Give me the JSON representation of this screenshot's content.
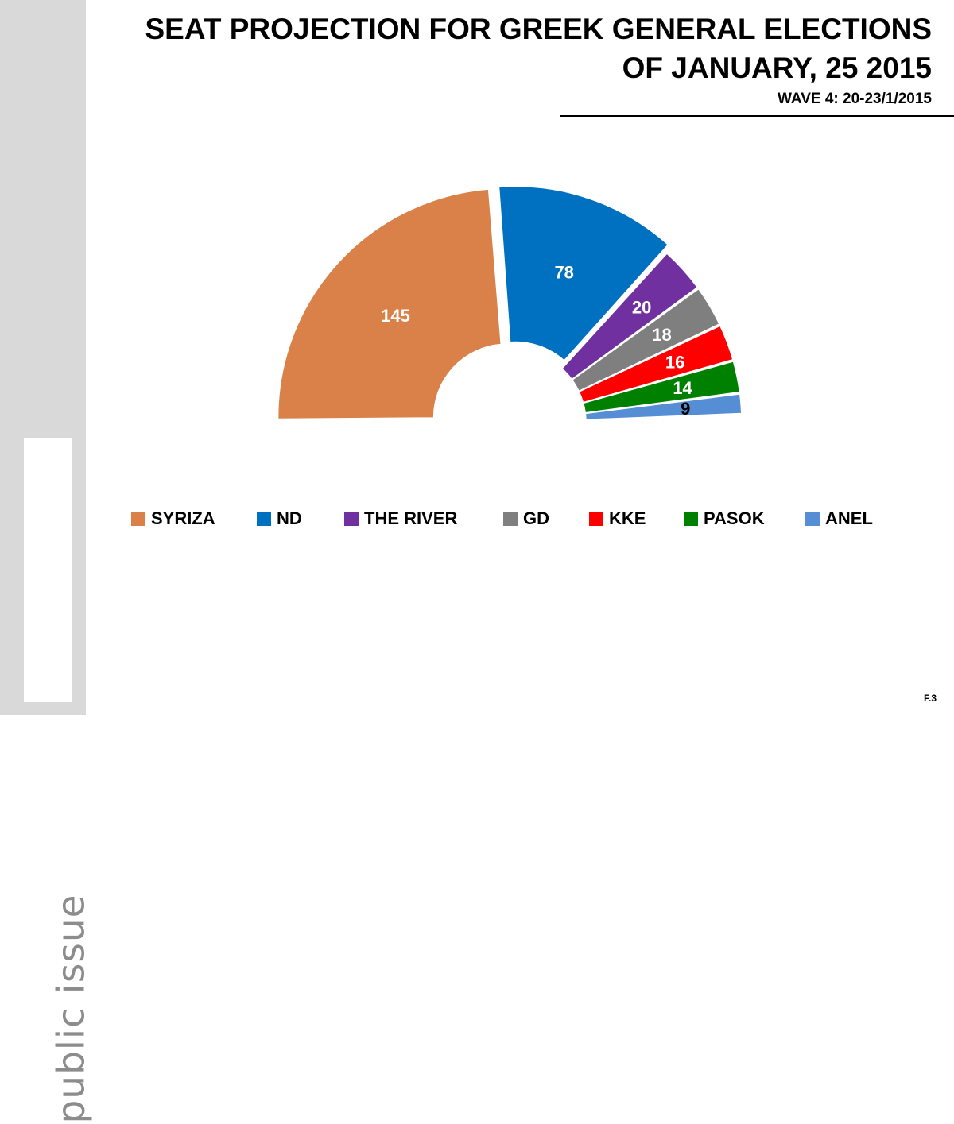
{
  "header": {
    "title_line1": "SEAT PROJECTION FOR GREEK GENERAL ELECTIONS",
    "title_line2": "OF JANUARY, 25 2015",
    "subtitle": "WAVE 4: 20-23/1/2015"
  },
  "branding": {
    "logo_text": "public issue"
  },
  "footer": {
    "code": "F.3"
  },
  "chart_data": {
    "type": "pie",
    "variant": "half-donut",
    "title": "SEAT PROJECTION FOR GREEK GENERAL ELECTIONS OF JANUARY, 25 2015",
    "subtitle": "WAVE 4: 20-23/1/2015",
    "legend_position": "bottom",
    "categories": [
      "SYRIZA",
      "ND",
      "THE RIVER",
      "GD",
      "KKE",
      "PASOK",
      "ANEL"
    ],
    "values": [
      145,
      78,
      20,
      18,
      16,
      14,
      9
    ],
    "colors": [
      "#D98148",
      "#0070C0",
      "#7030A0",
      "#7F7F7F",
      "#FF0000",
      "#008000",
      "#558ED5"
    ],
    "label_colors": [
      "#ffffff",
      "#ffffff",
      "#ffffff",
      "#ffffff",
      "#ffffff",
      "#ffffff",
      "#000000"
    ],
    "exploded": [
      "SYRIZA",
      "ND"
    ]
  }
}
